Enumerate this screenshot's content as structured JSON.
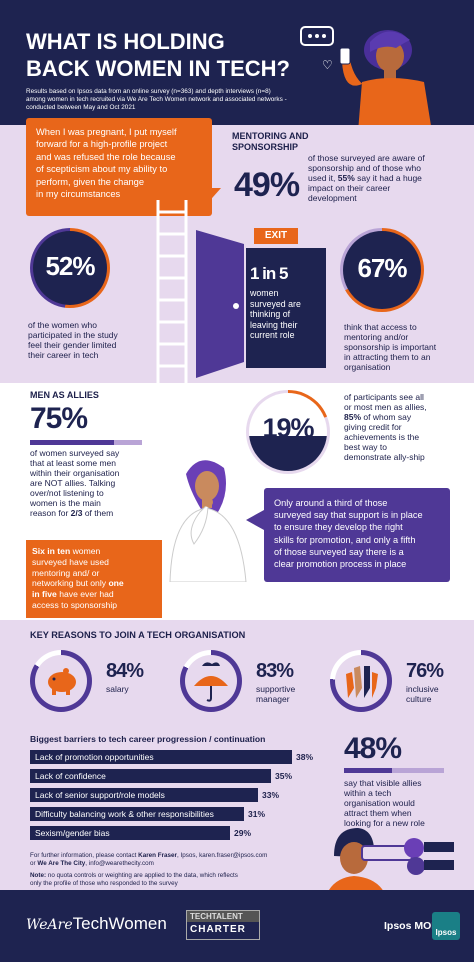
{
  "header": {
    "title_line1": "WHAT IS HOLDING",
    "title_line2": "BACK WOMEN IN TECH?",
    "subtitle_line1": "Results based on Ipsos data from an online survey (n=363) and depth interviews (n=8)",
    "subtitle_line2": "among women in tech recruited via We Are Tech Women network and associated networks -",
    "subtitle_line3": "conducted between May and Oct 2021"
  },
  "quote": {
    "line1": "When I was pregnant, I put myself",
    "line2": "forward for a high-profile project",
    "line3": "and was refused the role because",
    "line4": "of scepticism about my ability to",
    "line5": "perform, given the change",
    "line6": "in my circumstances"
  },
  "mentoring": {
    "heading_line1": "MENTORING AND",
    "heading_line2": "SPONSORSHIP",
    "value": "49%",
    "text_line1": "of those surveyed are aware of",
    "text_line2": "sponsorship and of those who",
    "text_line3a": "used it, ",
    "text_line3b": "55%",
    "text_line3c": " say it had a huge",
    "text_line4": "impact on their career",
    "text_line5": "development"
  },
  "exit": {
    "sign": "EXIT",
    "big": "1 in 5",
    "line1": "women",
    "line2": "surveyed are",
    "line3": "thinking of",
    "line4": "leaving their",
    "line5": "current role"
  },
  "stat52": {
    "value": "52%",
    "line1": "of the women who",
    "line2": "participated in the study",
    "line3": "feel their gender limited",
    "line4": "their career in tech"
  },
  "stat67": {
    "value": "67%",
    "line1": "think that access to",
    "line2": "mentoring and/or",
    "line3": "sponsorship is important",
    "line4": "in attracting them to an",
    "line5": "organisation"
  },
  "allies": {
    "heading": "MEN AS ALLIES",
    "value": "75%",
    "line1": "of women surveyed say",
    "line2": "that at least some men",
    "line3": "within their organisation",
    "line4": "are NOT allies. Talking",
    "line5": "over/not listening to",
    "line6": "women is the main",
    "line7a": "reason for ",
    "line7b": "2/3",
    "line7c": " of them"
  },
  "stat19": {
    "value": "19%",
    "line1": "of participants see all",
    "line2": "or most men as allies,",
    "line3a": "85%",
    "line3b": " of whom say",
    "line4": "giving credit for",
    "line5": "achievements is the",
    "line6": "best way to",
    "line7": "demonstrate ally-ship"
  },
  "support_box": {
    "line1": "Only around a third of those",
    "line2": "surveyed say that support is in place",
    "line3": "to ensure they develop the right",
    "line4": "skills for promotion, and only a fifth",
    "line5": "of those surveyed say there is a",
    "line6": "clear promotion process in place"
  },
  "six_in_ten": {
    "line1a": "Six in ten",
    "line1b": " women",
    "line2": "surveyed have used",
    "line3": "mentoring and/ or",
    "line4a": "networking but only ",
    "line4b": "one",
    "line5a": "in five",
    "line5b": " have ever had",
    "line6": "access to sponsorship"
  },
  "reasons": {
    "heading": "KEY REASONS TO JOIN A TECH ORGANISATION",
    "items": [
      {
        "value": "84%",
        "label_line1": "salary",
        "label_line2": "",
        "icon": "piggy-bank-icon",
        "pct": 84
      },
      {
        "value": "83%",
        "label_line1": "supportive",
        "label_line2": "manager",
        "icon": "umbrella-icon",
        "pct": 83
      },
      {
        "value": "76%",
        "label_line1": "inclusive",
        "label_line2": "culture",
        "icon": "raised-hands-icon",
        "pct": 76
      }
    ]
  },
  "barriers": {
    "heading": "Biggest barriers to tech career progression / continuation",
    "items": [
      {
        "label": "Lack of promotion opportunities",
        "value": "38%",
        "pct": 38
      },
      {
        "label": "Lack of confidence",
        "value": "35%",
        "pct": 35
      },
      {
        "label": "Lack of senior support/role models",
        "value": "33%",
        "pct": 33
      },
      {
        "label": "Difficulty balancing work & other responsibilities",
        "value": "31%",
        "pct": 31
      },
      {
        "label": "Sexism/gender bias",
        "value": "29%",
        "pct": 29
      }
    ]
  },
  "stat48": {
    "value": "48%",
    "line1": "say that visible allies",
    "line2": "within a tech",
    "line3": "organisation would",
    "line4": "attract them when",
    "line5": "looking for a new role"
  },
  "footer": {
    "contact_line1a": "For further information, please contact ",
    "contact_line1b": "Karen Fraser",
    "contact_line1c": ", Ipsos, karen.fraser@ipsos.com",
    "contact_line2a": "or ",
    "contact_line2b": "We Are The City",
    "contact_line2c": ", info@wearethecity.com",
    "note_line1a": "Note:",
    "note_line1b": " no quota controls or weighting are applied to the data, which reflects",
    "note_line2": "only the profile of those who responded to the survey"
  },
  "logos": {
    "watw_script": "WeAre",
    "watw_main": "TechWomen",
    "ttc_line1": "TECHTALENT",
    "ttc_line2": "CHARTER",
    "ipsos_mori": "Ipsos MORI",
    "ipsos_badge": "Ipsos"
  },
  "colors": {
    "navy": "#1e2350",
    "orange": "#e8661a",
    "purple": "#4f3896",
    "lilac": "#e7d9ee"
  }
}
